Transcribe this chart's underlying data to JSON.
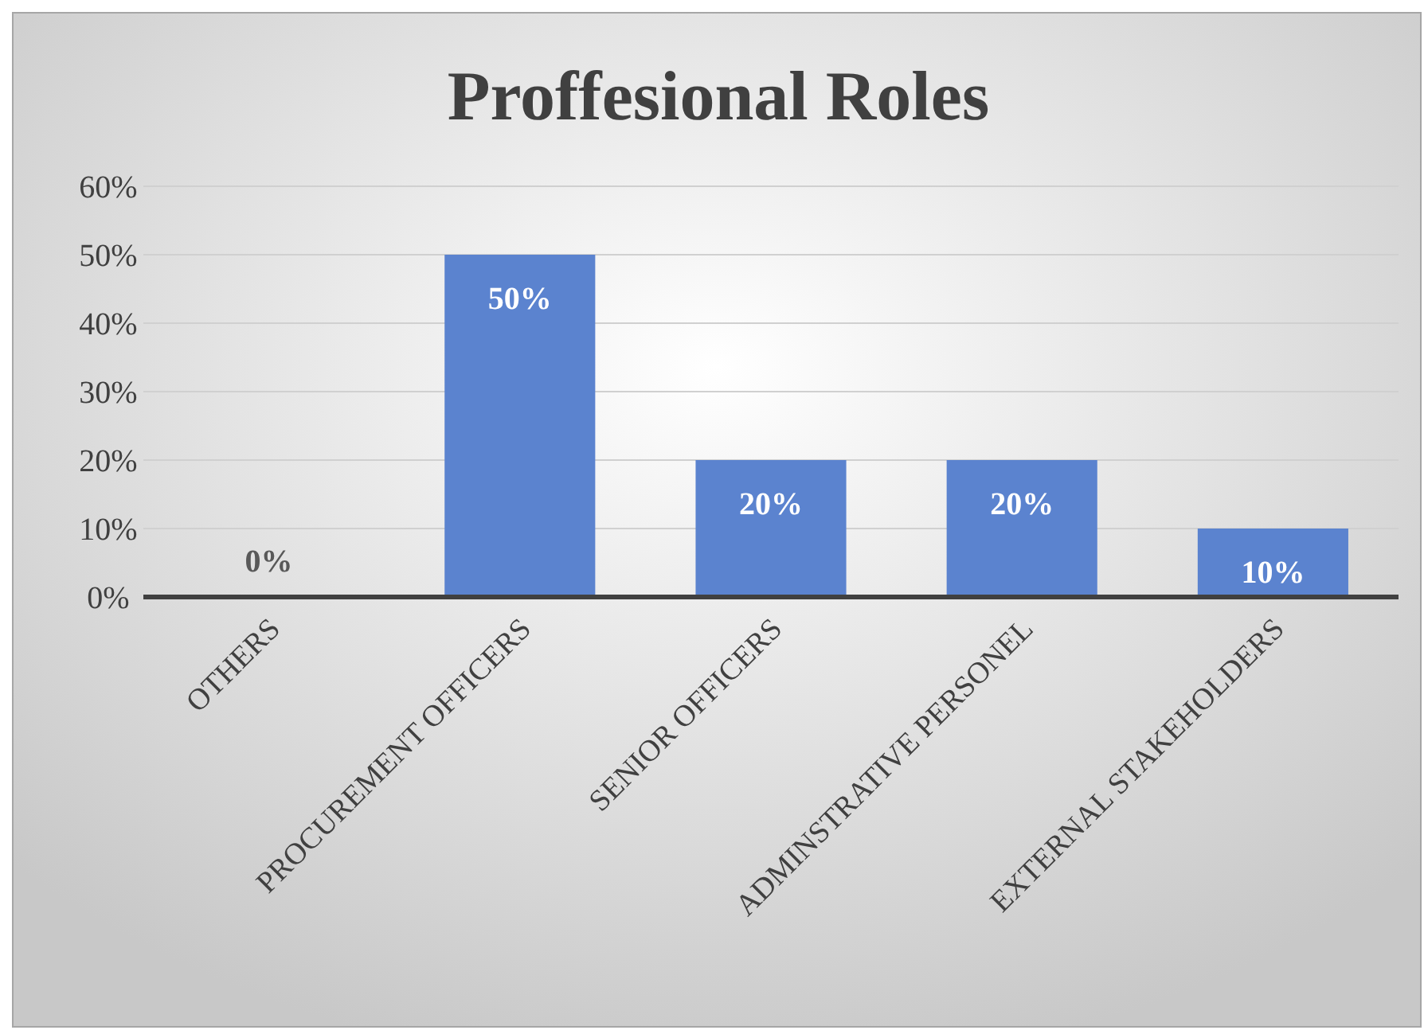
{
  "chart_data": {
    "type": "bar",
    "title": "Proffesional Roles",
    "categories": [
      "OTHERS",
      "PROCUREMENT OFFICERS",
      "SENIOR OFFICERS",
      "ADMINSTRATIVE PERSONEL",
      "EXTERNAL STAKEHOLDERS"
    ],
    "values": [
      0,
      50,
      20,
      20,
      10
    ],
    "value_labels": [
      "0%",
      "50%",
      "20%",
      "20%",
      "10%"
    ],
    "color": "#5b83cf",
    "ylim": [
      0,
      60
    ],
    "yticks": [
      {
        "value": 0,
        "label": "0%"
      },
      {
        "value": 10,
        "label": "10%"
      },
      {
        "value": 20,
        "label": "20%"
      },
      {
        "value": 30,
        "label": "30%"
      },
      {
        "value": 40,
        "label": "40%"
      },
      {
        "value": 50,
        "label": "50%"
      },
      {
        "value": 60,
        "label": "60%"
      }
    ],
    "grid": "y"
  }
}
